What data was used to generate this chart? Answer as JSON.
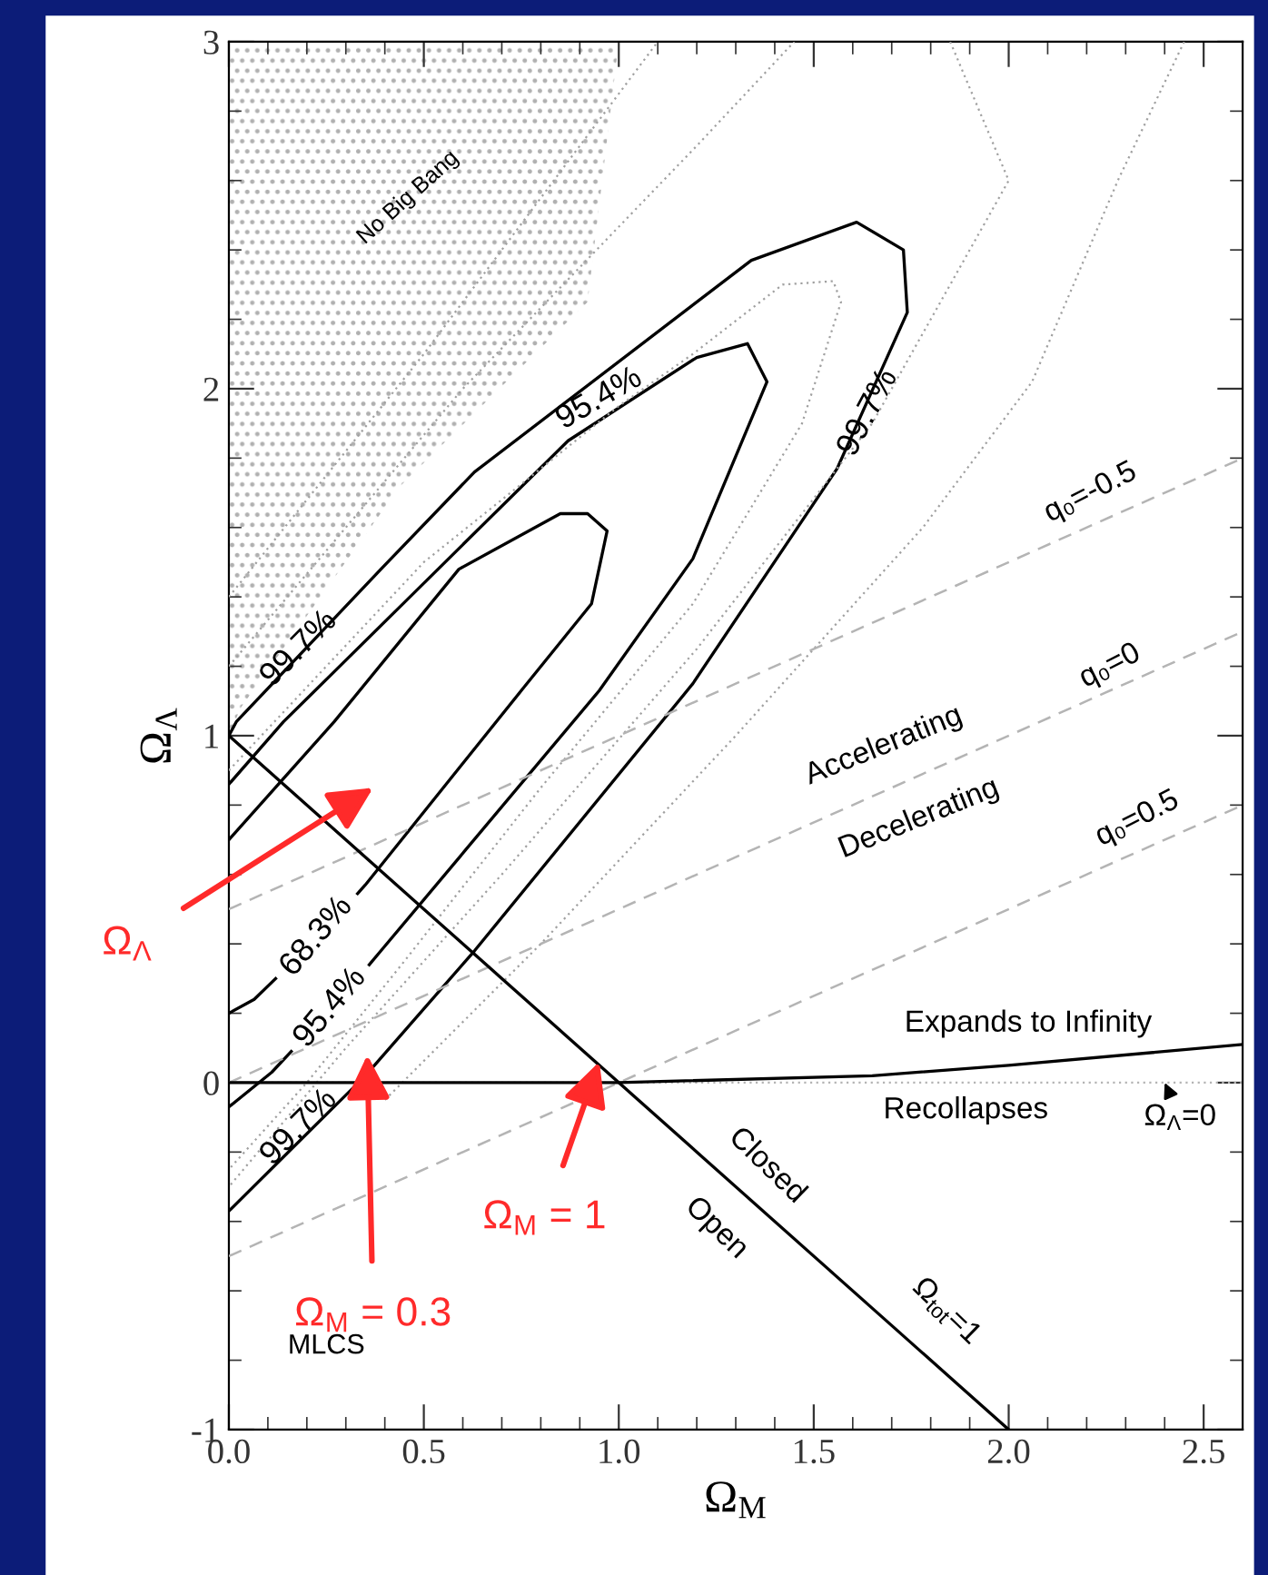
{
  "chart_data": {
    "type": "line",
    "xlabel": "Ω$_{M}$",
    "ylabel": "Ω$_{Λ}$",
    "xlim": [
      0,
      2.6
    ],
    "ylim": [
      -1,
      3
    ],
    "xticks": [
      {
        "value": 0,
        "label": "0.0"
      },
      {
        "value": 0.5,
        "label": "0.5"
      },
      {
        "value": 1,
        "label": "1.0"
      },
      {
        "value": 1.5,
        "label": "1.5"
      },
      {
        "value": 2,
        "label": "2.0"
      },
      {
        "value": 2.5,
        "label": "2.5"
      }
    ],
    "yticks": [
      -1,
      0,
      1,
      2,
      3
    ],
    "grid": false,
    "series": [
      {
        "type": "area",
        "color": "#b0b0b0",
        "x": [
          0,
          0,
          0.03,
          0.44,
          0.92,
          1.0
        ],
        "values": [
          3,
          1.0,
          1.08,
          1.72,
          2.25,
          3.0
        ]
      },
      {
        "color": "#000000",
        "line_style": "solid",
        "x": [
          0,
          0.27,
          0.59,
          0.85,
          0.92,
          0.97,
          0.93,
          0.75,
          0.35,
          0.33,
          0.22,
          0.12,
          0.065,
          0
        ],
        "values": [
          0.7,
          1.04,
          1.48,
          1.64,
          1.64,
          1.59,
          1.38,
          1.13,
          0.57,
          0.545,
          null,
          0.3,
          0.24,
          0.2
        ]
      },
      {
        "color": "#000000",
        "line_style": "solid",
        "x": [
          0,
          0.14,
          0.87,
          1.2,
          1.33,
          1.38,
          1.19,
          0.95,
          0.39,
          0.36,
          0.26,
          0.16,
          0.11,
          0
        ],
        "values": [
          0.86,
          1.04,
          1.85,
          2.09,
          2.13,
          2.02,
          1.51,
          1.13,
          0.38,
          0.34,
          null,
          0.09,
          0.03,
          -0.07
        ]
      },
      {
        "color": "#000000",
        "line_style": "solid",
        "x": [
          0,
          0.019,
          0.39,
          0.63,
          1.34,
          1.61,
          1.73,
          1.74,
          1.56,
          1.19,
          0.63,
          0.35,
          0
        ],
        "values": [
          1.0,
          1.04,
          1.48,
          1.76,
          2.37,
          2.48,
          2.4,
          2.22,
          1.77,
          1.15,
          0.38,
          0.02,
          -0.37
        ]
      },
      {
        "color": "#a0a0a0",
        "line_style": "dotted",
        "x": [
          0,
          0.5,
          1.0,
          1.19,
          1.42,
          1.55,
          1.57,
          1.47,
          1.19,
          0.8,
          0.45,
          0.2,
          0
        ],
        "values": [
          0.9,
          1.5,
          1.95,
          2.1,
          2.3,
          2.31,
          2.25,
          1.9,
          1.38,
          0.85,
          0.35,
          0.0,
          -0.25
        ]
      },
      {
        "color": "#a0a0a0",
        "line_style": "dotted",
        "x": [
          0,
          0.6,
          1.2,
          1.45,
          1.6,
          1.85,
          2.0,
          1.65,
          1.2,
          0.7,
          0.3,
          0
        ],
        "values": [
          1.2,
          2.0,
          2.7,
          3.0,
          null,
          3.0,
          2.6,
          1.9,
          1.25,
          0.6,
          0.1,
          -0.3
        ]
      },
      {
        "color": "#a0a0a0",
        "line_style": "dotted",
        "x": [
          0,
          0.5,
          0.9,
          1.1,
          1.8,
          2.45,
          2.28,
          2.06,
          1.78,
          1.3,
          0.8,
          0.4
        ],
        "values": [
          1.4,
          2.1,
          2.7,
          3.0,
          null,
          3.0,
          2.6,
          2.02,
          1.6,
          1.0,
          0.4,
          -0.05
        ]
      },
      {
        "color": "#b4b4b4",
        "line_style": "dashed",
        "x": [
          0,
          2.6
        ],
        "values": [
          0.5,
          1.8
        ]
      },
      {
        "color": "#b4b4b4",
        "line_style": "dashed",
        "x": [
          0,
          2.6
        ],
        "values": [
          0,
          1.3
        ]
      },
      {
        "color": "#b4b4b4",
        "line_style": "dashed",
        "x": [
          0,
          2.6
        ],
        "values": [
          -0.5,
          0.8
        ]
      },
      {
        "color": "#000000",
        "line_style": "solid",
        "x": [
          0,
          2
        ],
        "values": [
          1,
          -1
        ]
      },
      {
        "color": "#000000",
        "line_style": "solid",
        "x": [
          0,
          1.0,
          1.65,
          2.0,
          2.6
        ],
        "values": [
          0,
          0,
          0.02,
          0.05,
          0.11
        ]
      }
    ],
    "ref_lines": [
      {
        "axis": "y",
        "value": 0,
        "color": "#b4b4b4",
        "line_style": "dotted"
      }
    ],
    "annotations": [
      {
        "text": "99.7%",
        "x": 0.18,
        "y": 1.25
      },
      "95.4%",
      {
        "text": "99.7%",
        "x": 1.64,
        "y": 1.93
      },
      "68.3%",
      "95.4%",
      {
        "text": "99.7%",
        "x": 0.18,
        "y": -0.13
      },
      "No Big Bang",
      "q₀=-0.5",
      "q₀=0",
      "q₀=0.5",
      "Accelerating",
      "Decelerating",
      "Expands to Infinity",
      "Recollapses",
      {
        "text": "Ω$_{Λ}$=0",
        "x": 2.4,
        "y": 0
      },
      "Closed",
      "Open",
      "Ω$_{tot}$=1",
      "MLCS",
      "Ω$_{Λ}$",
      {
        "text": "Ω$_{M}$ = 0.3",
        "x": 0.355,
        "y": 0.08
      },
      {
        "text": "Ω$_{M}$ = 1",
        "x": 0.95,
        "y": 0.06
      }
    ]
  }
}
